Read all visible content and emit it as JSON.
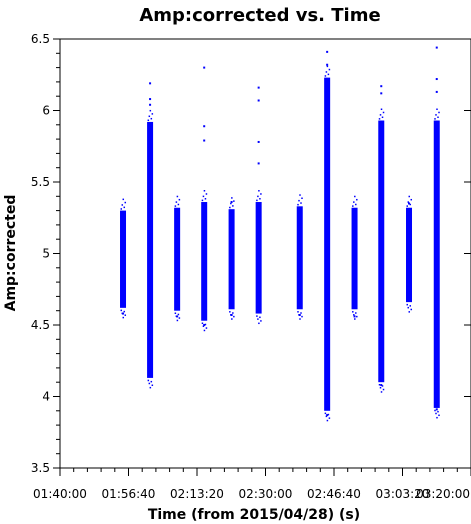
{
  "chart_data": {
    "type": "scatter",
    "title": "Amp:corrected vs. Time",
    "xlabel": "Time (from 2015/04/28) (s)",
    "ylabel": "Amp:corrected",
    "xlim": [
      "01:40:00",
      "03:20:00"
    ],
    "ylim": [
      3.5,
      6.5
    ],
    "x_ticks": [
      "01:40:00",
      "01:56:40",
      "02:13:20",
      "02:30:00",
      "02:46:40",
      "03:03:20",
      "03:20:00"
    ],
    "y_ticks": [
      "3.5",
      "4",
      "4.5",
      "5",
      "5.5",
      "6",
      "6.5"
    ],
    "grid": false,
    "color": "#0000ff",
    "series": [
      {
        "x": [
          "01:55:20",
          "02:01:55",
          "02:08:30",
          "02:15:05",
          "02:21:45",
          "02:28:20",
          "02:38:20",
          "02:45:00",
          "02:51:40",
          "02:58:10",
          "03:04:55",
          "03:11:40"
        ],
        "y_min": [
          4.62,
          4.13,
          4.6,
          4.53,
          4.61,
          4.58,
          4.61,
          3.9,
          4.61,
          4.1,
          4.66,
          3.92
        ],
        "y_max": [
          5.3,
          5.92,
          5.32,
          5.36,
          5.31,
          5.36,
          5.33,
          6.23,
          5.32,
          5.93,
          5.32,
          5.93
        ],
        "outliers": [
          [
            [
              "01:55:20",
              4.58
            ]
          ],
          [
            [
              "02:01:55",
              6.19
            ],
            [
              "02:01:55",
              6.08
            ],
            [
              "02:01:55",
              6.04
            ]
          ],
          [
            [
              "02:08:30",
              4.56
            ]
          ],
          [
            [
              "02:15:05",
              6.3
            ],
            [
              "02:15:05",
              5.89
            ],
            [
              "02:15:05",
              5.79
            ],
            [
              "02:15:05",
              4.5
            ]
          ],
          [
            [
              "02:21:45",
              5.36
            ],
            [
              "02:21:45",
              4.57
            ]
          ],
          [
            [
              "02:28:20",
              6.16
            ],
            [
              "02:28:20",
              6.07
            ],
            [
              "02:28:20",
              5.78
            ],
            [
              "02:28:20",
              5.63
            ]
          ],
          [
            [
              "02:38:20",
              4.57
            ]
          ],
          [
            [
              "02:45:00",
              6.41
            ],
            [
              "02:45:00",
              6.32
            ],
            [
              "02:45:00",
              3.87
            ]
          ],
          [
            [
              "02:51:40",
              4.56
            ]
          ],
          [
            [
              "02:58:10",
              6.17
            ],
            [
              "02:58:10",
              6.12
            ],
            [
              "02:58:10",
              4.08
            ]
          ],
          [
            [
              "03:04:55",
              5.35
            ]
          ],
          [
            [
              "03:11:40",
              6.44
            ],
            [
              "03:11:40",
              6.22
            ],
            [
              "03:11:40",
              6.13
            ],
            [
              "03:11:40",
              3.91
            ]
          ]
        ]
      }
    ]
  }
}
